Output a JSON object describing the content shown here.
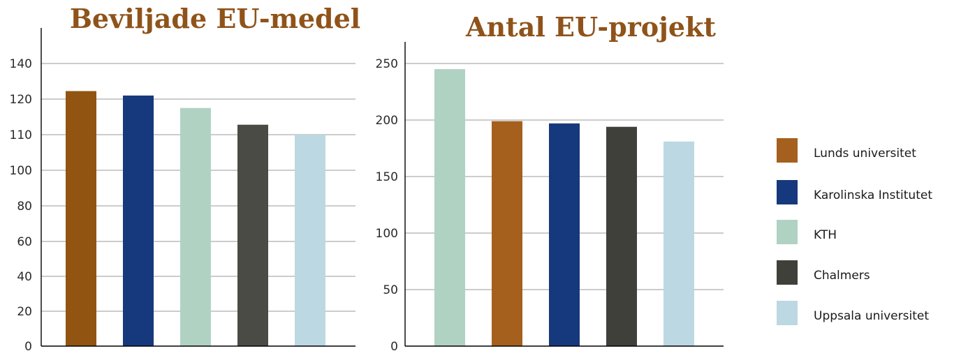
{
  "chart_data": [
    {
      "type": "bar",
      "title": "Beviljade EU-medel",
      "ticks": [
        "0",
        "20",
        "40",
        "60",
        "80",
        "100",
        "110",
        "120",
        "140"
      ],
      "categories": [
        "Lunds universitet",
        "Karolinska Institutet",
        "KTH",
        "Chalmers",
        "Uppsala universitet"
      ],
      "values": [
        124.5,
        122,
        117.5,
        112.8,
        110
      ],
      "colors": [
        "#915411",
        "#16387c",
        "#b0d2c3",
        "#4b4b46",
        "#bcd8e2"
      ],
      "grid": true
    },
    {
      "type": "bar",
      "title": "Antal EU-projekt",
      "ticks": [
        "0",
        "50",
        "100",
        "150",
        "200",
        "250"
      ],
      "ylim": [
        0,
        250
      ],
      "categories": [
        "KTH",
        "Lunds universitet",
        "Karolinska Institutet",
        "Chalmers",
        "Uppsala universitet"
      ],
      "values": [
        245,
        199,
        197,
        194,
        181
      ],
      "colors": [
        "#b0d2c3",
        "#a5601d",
        "#16387c",
        "#40403b",
        "#bcd8e2"
      ],
      "grid": true
    }
  ],
  "legend": {
    "placement": "right",
    "items": [
      {
        "label": "Lunds universitet",
        "color": "#a5601d"
      },
      {
        "label": "Karolinska Institutet",
        "color": "#16387c"
      },
      {
        "label": "KTH",
        "color": "#b0d2c3"
      },
      {
        "label": "Chalmers",
        "color": "#40403b"
      },
      {
        "label": "Uppsala universitet",
        "color": "#bcd8e2"
      }
    ]
  }
}
